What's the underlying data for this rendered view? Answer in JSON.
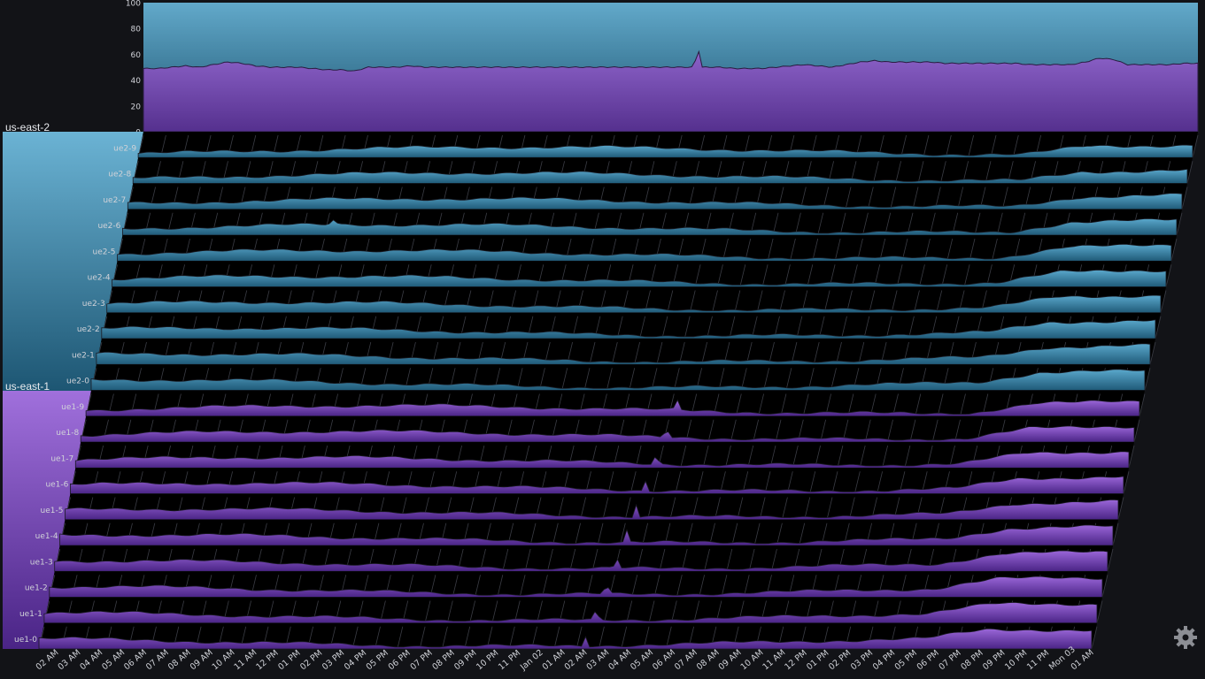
{
  "chart_data": {
    "type": "area",
    "summary_chart": {
      "ylim": [
        0,
        100
      ],
      "yticks": [
        "0",
        "20",
        "40",
        "60",
        "80",
        "100"
      ],
      "grid": false,
      "series_level": [
        49,
        49,
        50,
        51,
        50,
        52,
        54,
        53,
        51,
        50,
        50,
        50,
        49,
        48,
        48,
        47,
        50,
        50,
        50,
        51,
        50,
        50,
        50,
        50,
        50,
        50,
        50,
        50,
        50,
        50,
        50,
        50,
        50,
        50,
        50,
        50,
        50,
        50,
        50,
        50,
        50,
        50,
        49,
        49,
        49,
        50,
        51,
        52,
        51,
        50,
        52,
        54,
        55,
        54,
        54,
        54,
        54,
        53,
        53,
        53,
        53,
        53,
        53,
        52,
        52,
        52,
        52,
        54,
        57,
        56,
        52,
        52,
        52,
        52,
        53,
        53
      ],
      "spike": {
        "index": 39,
        "value": 65
      }
    },
    "x_tick_labels": [
      "02 AM",
      "03 AM",
      "04 AM",
      "05 AM",
      "06 AM",
      "07 AM",
      "08 AM",
      "09 AM",
      "10 AM",
      "11 AM",
      "12 PM",
      "01 PM",
      "02 PM",
      "03 PM",
      "04 PM",
      "05 PM",
      "06 PM",
      "07 PM",
      "08 PM",
      "09 PM",
      "10 PM",
      "11 PM",
      "Jan 02",
      "01 AM",
      "02 AM",
      "03 AM",
      "04 AM",
      "05 AM",
      "06 AM",
      "07 AM",
      "08 AM",
      "09 AM",
      "10 AM",
      "11 AM",
      "12 PM",
      "01 PM",
      "02 PM",
      "03 PM",
      "04 PM",
      "05 PM",
      "06 PM",
      "07 PM",
      "08 PM",
      "09 PM",
      "10 PM",
      "11 PM",
      "Mon 03",
      "01 AM"
    ],
    "groups": [
      {
        "name": "us-east-2",
        "color_top": "#5aa8cc",
        "color_bottom": "#1f5a78",
        "series": [
          "ue2-9",
          "ue2-8",
          "ue2-7",
          "ue2-6",
          "ue2-5",
          "ue2-4",
          "ue2-3",
          "ue2-2",
          "ue2-1",
          "ue2-0"
        ]
      },
      {
        "name": "us-east-1",
        "color_top": "#9a66d8",
        "color_bottom": "#4a2486",
        "series": [
          "ue1-9",
          "ue1-8",
          "ue1-7",
          "ue1-6",
          "ue1-5",
          "ue1-4",
          "ue1-3",
          "ue1-2",
          "ue1-1",
          "ue1-0"
        ]
      }
    ]
  },
  "colors": {
    "background": "#121317",
    "panel": "#000000",
    "blue_accent": "#5aa8cc",
    "purple_accent": "#8a55cc"
  },
  "icons": {
    "corner": "gear-icon"
  }
}
